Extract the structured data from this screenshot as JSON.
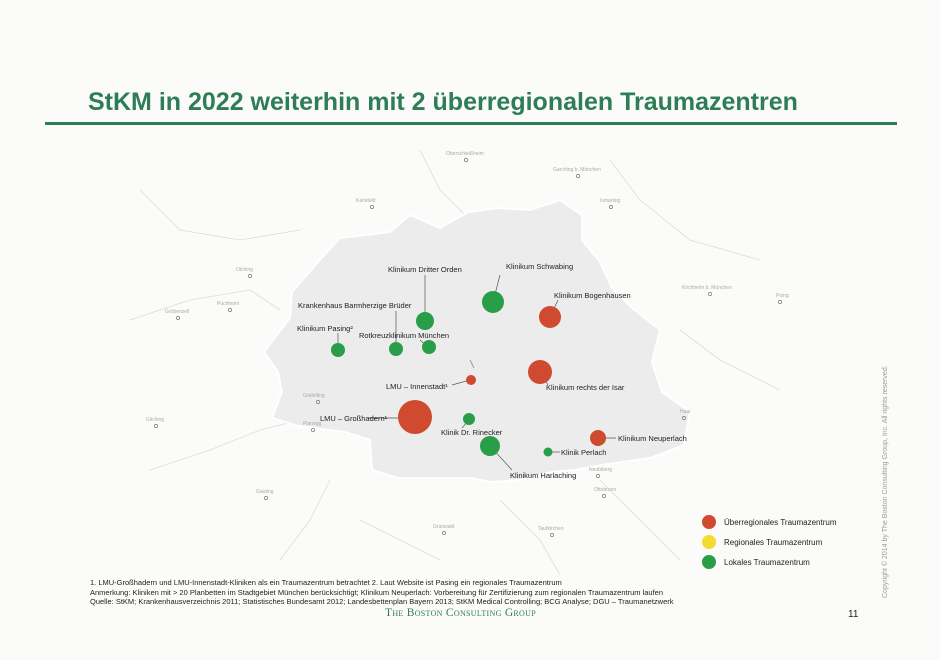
{
  "title": "StKM in 2022 weiterhin mit 2 überregionalen Traumazentren",
  "colors": {
    "accent": "#2e7d57",
    "ueberregional": "#cf4a2e",
    "regional": "#f2dc30",
    "lokal": "#2a9d48"
  },
  "clinics": [
    {
      "name": "Klinikum Schwabing",
      "type": "lokal",
      "size": "l"
    },
    {
      "name": "Klinikum Dritter Orden",
      "type": "lokal",
      "size": "m"
    },
    {
      "name": "Klinikum Bogenhausen",
      "type": "ueberregional",
      "size": "l"
    },
    {
      "name": "Krankenhaus Barmherzige Brüder",
      "type": "lokal",
      "size": "s"
    },
    {
      "name": "Klinikum Pasing²",
      "type": "lokal",
      "size": "s"
    },
    {
      "name": "Rotkreuzklinikum München",
      "type": "lokal",
      "size": "s"
    },
    {
      "name": "LMU – Innenstadt¹",
      "type": "ueberregional",
      "size": "xs"
    },
    {
      "name": "Klinikum rechts der Isar",
      "type": "ueberregional",
      "size": "l"
    },
    {
      "name": "LMU – Großhadern¹",
      "type": "ueberregional",
      "size": "xl"
    },
    {
      "name": "Klinik Dr. Rinecker",
      "type": "lokal",
      "size": "s"
    },
    {
      "name": "Klinikum Neuperlach",
      "type": "ueberregional",
      "size": "m"
    },
    {
      "name": "Klinik Perlach",
      "type": "lokal",
      "size": "xs"
    },
    {
      "name": "Klinikum Harlaching",
      "type": "lokal",
      "size": "l"
    }
  ],
  "places": [
    "Oberschleißheim",
    "Garching b. München",
    "Karlsfeld",
    "Ismaning",
    "Olching",
    "Kirchheim b. München",
    "Puchheim",
    "Poing",
    "Gröbenzell",
    "Gräfelfing",
    "Planegg",
    "Haar",
    "Gilching",
    "Neubiberg",
    "Gauting",
    "Ottobrunn",
    "Grünwald",
    "Taufkirchen"
  ],
  "legend": [
    {
      "label": "Überregionales Traumazentrum",
      "color": "#cf4a2e"
    },
    {
      "label": "Regionales Traumazentrum",
      "color": "#f2dc30"
    },
    {
      "label": "Lokales Traumazentrum",
      "color": "#2a9d48"
    }
  ],
  "notes": {
    "line1": "1. LMU-Großhadern und LMU-Innenstadt-Kliniken als ein Traumazentrum betrachtet  2. Laut Website ist Pasing ein regionales Traumazentrum",
    "line2": "Anmerkung: Kliniken mit > 20 Planbetten im Stadtgebiet München berücksichtigt; Klinikum Neuperlach: Vorbereitung für Zertifizierung zum regionalen Traumazentrum laufen",
    "line3": "Quelle: StKM; Krankenhausverzeichnis 2011; Statistisches Bundesamt 2012; Landesbettenplan Bayern 2013; StKM Medical Controlling; BCG Analyse; DGU – Traumanetzwerk"
  },
  "brand": "The Boston Consulting Group",
  "page_number": "11",
  "copyright": "Copyright © 2014 by The Boston Consulting Group, Inc. All rights reserved."
}
